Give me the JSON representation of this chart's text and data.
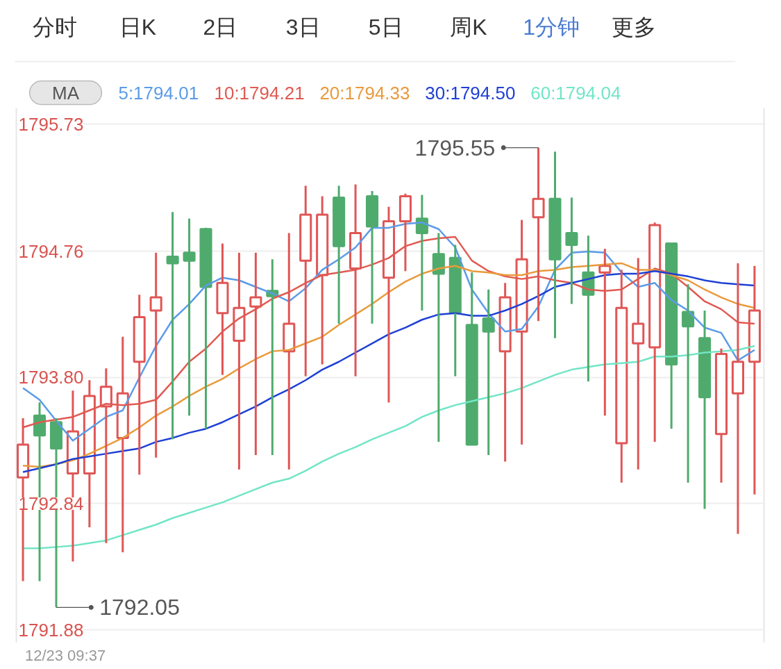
{
  "chart_data": {
    "type": "candlestick",
    "categories": [
      null,
      null,
      null,
      null,
      null,
      null,
      null,
      null,
      null,
      null,
      null,
      null,
      null,
      null,
      null,
      null,
      null,
      null,
      null,
      null,
      null,
      null,
      null,
      null,
      null,
      null,
      null,
      null,
      null,
      null,
      null,
      null,
      null,
      null,
      null,
      null,
      null,
      null,
      null,
      null,
      null,
      null,
      null,
      null,
      null
    ],
    "ohlc": [
      [
        1793.04,
        1793.49,
        1792.25,
        1793.29
      ],
      [
        1793.51,
        1793.61,
        1792.25,
        1793.36
      ],
      [
        1793.46,
        1793.49,
        1792.05,
        1793.26
      ],
      [
        1793.07,
        1793.7,
        1792.4,
        1793.39
      ],
      [
        1793.07,
        1793.78,
        1792.66,
        1793.66
      ],
      [
        1793.58,
        1793.87,
        1792.54,
        1793.73
      ],
      [
        1793.34,
        1794.11,
        1792.47,
        1793.68
      ],
      [
        1793.92,
        1794.43,
        1793.06,
        1794.26
      ],
      [
        1794.31,
        1794.75,
        1793.19,
        1794.41
      ],
      [
        1794.72,
        1795.06,
        1793.33,
        1794.67
      ],
      [
        1794.75,
        1795.01,
        1793.51,
        1794.69
      ],
      [
        1794.93,
        1794.94,
        1793.41,
        1794.49
      ],
      [
        1794.29,
        1794.82,
        1793.82,
        1794.52
      ],
      [
        1794.08,
        1794.75,
        1793.1,
        1794.33
      ],
      [
        1794.34,
        1794.75,
        1793.21,
        1794.41
      ],
      [
        1794.46,
        1794.7,
        1793.21,
        1794.42
      ],
      [
        1794.0,
        1794.9,
        1793.1,
        1794.21
      ],
      [
        1794.69,
        1795.26,
        1793.81,
        1795.04
      ],
      [
        1794.58,
        1795.18,
        1793.9,
        1795.04
      ],
      [
        1795.17,
        1795.26,
        1794.21,
        1794.8
      ],
      [
        1794.63,
        1795.27,
        1793.81,
        1794.9
      ],
      [
        1795.18,
        1795.22,
        1794.21,
        1794.95
      ],
      [
        1794.56,
        1795.1,
        1793.61,
        1794.99
      ],
      [
        1794.99,
        1795.2,
        1794.61,
        1795.18
      ],
      [
        1795.01,
        1795.19,
        1794.31,
        1794.9
      ],
      [
        1794.74,
        1794.9,
        1793.31,
        1794.59
      ],
      [
        1794.71,
        1794.81,
        1793.81,
        1794.29
      ],
      [
        1794.2,
        1794.6,
        1793.29,
        1793.29
      ],
      [
        1794.25,
        1794.47,
        1793.21,
        1794.15
      ],
      [
        1794.0,
        1794.52,
        1793.16,
        1794.41
      ],
      [
        1794.15,
        1795.0,
        1793.29,
        1794.7
      ],
      [
        1795.02,
        1795.55,
        1794.23,
        1795.16
      ],
      [
        1795.16,
        1795.52,
        1794.1,
        1794.7
      ],
      [
        1794.9,
        1795.17,
        1794.36,
        1794.81
      ],
      [
        1794.6,
        1794.88,
        1793.77,
        1794.43
      ],
      [
        1794.6,
        1794.78,
        1793.51,
        1794.65
      ],
      [
        1793.3,
        1794.62,
        1793.0,
        1794.33
      ],
      [
        1794.06,
        1794.71,
        1793.1,
        1794.21
      ],
      [
        1794.03,
        1794.98,
        1793.31,
        1794.96
      ],
      [
        1794.82,
        1794.82,
        1793.41,
        1793.9
      ],
      [
        1794.3,
        1794.51,
        1793.0,
        1794.19
      ],
      [
        1794.1,
        1794.31,
        1792.8,
        1793.65
      ],
      [
        1793.37,
        1794.02,
        1793.0,
        1793.98
      ],
      [
        1793.68,
        1794.67,
        1792.61,
        1793.92
      ],
      [
        1793.92,
        1794.65,
        1792.91,
        1794.31
      ]
    ],
    "colors": [
      "#e05656",
      "#4fab6d",
      "#4fab6d",
      "#e05656",
      "#e05656",
      "#e05656",
      "#e05656",
      "#e05656",
      "#e05656",
      "#4fab6d",
      "#4fab6d",
      "#4fab6d",
      "#e05656",
      "#e05656",
      "#e05656",
      "#4fab6d",
      "#e05656",
      "#e05656",
      "#e05656",
      "#4fab6d",
      "#e05656",
      "#4fab6d",
      "#e05656",
      "#e05656",
      "#4fab6d",
      "#4fab6d",
      "#4fab6d",
      "#4fab6d",
      "#4fab6d",
      "#e05656",
      "#e05656",
      "#e05656",
      "#4fab6d",
      "#4fab6d",
      "#4fab6d",
      "#e05656",
      "#e05656",
      "#e05656",
      "#e05656",
      "#4fab6d",
      "#4fab6d",
      "#4fab6d",
      "#e05656",
      "#e05656",
      "#e05656"
    ],
    "series": [
      {
        "name": "5:1794.01",
        "type": "line",
        "color": "#5b9be8",
        "values": [
          1793.72,
          1793.63,
          1793.47,
          1793.32,
          1793.41,
          1793.5,
          1793.55,
          1793.8,
          1794.04,
          1794.24,
          1794.36,
          1794.5,
          1794.56,
          1794.54,
          1794.49,
          1794.44,
          1794.38,
          1794.48,
          1794.62,
          1794.7,
          1794.79,
          1794.94,
          1794.94,
          1794.97,
          1794.98,
          1794.93,
          1794.79,
          1794.47,
          1794.29,
          1794.15,
          1794.17,
          1794.34,
          1794.62,
          1794.75,
          1794.76,
          1794.75,
          1794.6,
          1794.49,
          1794.52,
          1794.39,
          1794.31,
          1794.18,
          1794.14,
          1793.93,
          1794.01
        ]
      },
      {
        "name": "10:1794.21",
        "type": "line",
        "color": "#e05a52",
        "values": [
          1793.42,
          1793.46,
          1793.48,
          1793.5,
          1793.55,
          1793.6,
          1793.59,
          1793.6,
          1793.63,
          1793.77,
          1793.92,
          1794.02,
          1794.15,
          1794.25,
          1794.32,
          1794.4,
          1794.45,
          1794.52,
          1794.58,
          1794.6,
          1794.62,
          1794.66,
          1794.71,
          1794.8,
          1794.84,
          1794.86,
          1794.87,
          1794.69,
          1794.61,
          1794.57,
          1794.55,
          1794.57,
          1794.54,
          1794.52,
          1794.47,
          1794.46,
          1794.47,
          1794.55,
          1794.63,
          1794.59,
          1794.49,
          1794.38,
          1794.32,
          1794.22,
          1794.21
        ]
      },
      {
        "name": "20:1794.33",
        "type": "line",
        "color": "#e99a3c",
        "values": [
          1793.13,
          1793.12,
          1793.14,
          1793.17,
          1793.22,
          1793.28,
          1793.34,
          1793.42,
          1793.51,
          1793.58,
          1793.66,
          1793.73,
          1793.79,
          1793.87,
          1793.94,
          1794.0,
          1794.01,
          1794.06,
          1794.11,
          1794.2,
          1794.28,
          1794.36,
          1794.45,
          1794.53,
          1794.59,
          1794.63,
          1794.65,
          1794.61,
          1794.6,
          1794.58,
          1794.58,
          1794.61,
          1794.62,
          1794.64,
          1794.65,
          1794.66,
          1794.67,
          1794.62,
          1794.62,
          1794.58,
          1794.54,
          1794.47,
          1794.41,
          1794.36,
          1794.33
        ]
      },
      {
        "name": "30:1794.50",
        "type": "line",
        "color": "#1e40d4",
        "values": [
          1793.08,
          1793.11,
          1793.14,
          1793.18,
          1793.2,
          1793.22,
          1793.24,
          1793.26,
          1793.31,
          1793.34,
          1793.38,
          1793.41,
          1793.46,
          1793.52,
          1793.58,
          1793.65,
          1793.71,
          1793.78,
          1793.86,
          1793.92,
          1793.99,
          1794.06,
          1794.13,
          1794.18,
          1794.24,
          1794.28,
          1794.29,
          1794.27,
          1794.27,
          1794.31,
          1794.36,
          1794.42,
          1794.49,
          1794.52,
          1794.55,
          1794.58,
          1794.59,
          1794.59,
          1794.61,
          1794.59,
          1794.57,
          1794.54,
          1794.52,
          1794.51,
          1794.5
        ]
      },
      {
        "name": "60:1794.04",
        "type": "line",
        "color": "#72e5c6",
        "values": [
          1792.5,
          1792.5,
          1792.51,
          1792.52,
          1792.54,
          1792.56,
          1792.6,
          1792.64,
          1792.68,
          1792.73,
          1792.77,
          1792.81,
          1792.85,
          1792.9,
          1792.95,
          1793.0,
          1793.03,
          1793.09,
          1793.16,
          1793.22,
          1793.27,
          1793.33,
          1793.38,
          1793.43,
          1793.5,
          1793.55,
          1793.59,
          1793.62,
          1793.65,
          1793.68,
          1793.72,
          1793.77,
          1793.82,
          1793.86,
          1793.88,
          1793.9,
          1793.91,
          1793.92,
          1793.96,
          1793.96,
          1793.97,
          1793.99,
          1794.0,
          1794.01,
          1794.04
        ]
      }
    ],
    "ylim": [
      1791.88,
      1795.73
    ],
    "yticks": [
      1791.88,
      1792.84,
      {
        "value": 1793.8,
        "label": "1793.80"
      },
      1794.76,
      1795.73
    ],
    "grid": "y",
    "tick_labels": "y",
    "legend": "top left",
    "legend_title": "MA",
    "annotations": [
      "1795.55",
      "1792.05",
      "分时",
      "日K",
      "2日",
      "3日",
      "5日",
      "周K",
      "1分钟",
      "更多",
      "12/23 09:37"
    ]
  }
}
